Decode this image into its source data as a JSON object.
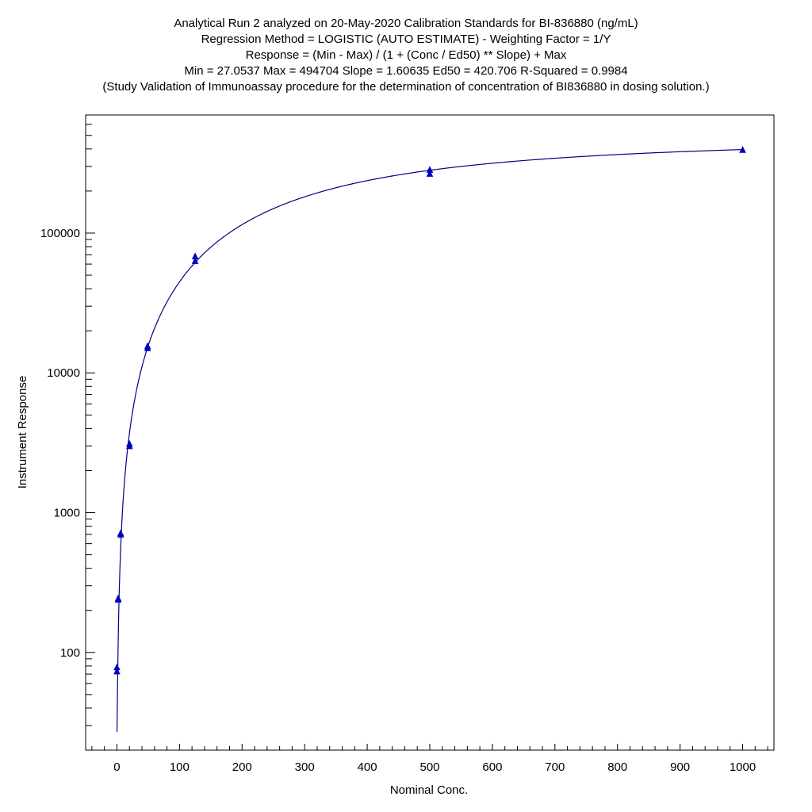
{
  "chart_data": {
    "type": "scatter",
    "title_lines": [
      "Analytical Run 2 analyzed on 20-May-2020 Calibration Standards for BI-836880 (ng/mL)",
      "Regression Method = LOGISTIC (AUTO ESTIMATE) - Weighting Factor = 1/Y",
      "Response = (Min - Max) / (1 + (Conc / Ed50) ** Slope) + Max",
      "Min = 27.0537 Max = 494704 Slope = 1.60635 Ed50 = 420.706 R-Squared = 0.9984",
      "(Study Validation of Immunoassay procedure for the determination of concentration of BI836880 in dosing solution.)"
    ],
    "xlabel": "Nominal Conc.",
    "ylabel": "Instrument Response",
    "xlim": [
      -50,
      1050
    ],
    "ylim": [
      20,
      700000
    ],
    "yscale": "log",
    "x_ticks": [
      0,
      100,
      200,
      300,
      400,
      500,
      600,
      700,
      800,
      900,
      1000
    ],
    "x_tick_labels": [
      "0",
      "100",
      "200",
      "300",
      "400",
      "500",
      "600",
      "700",
      "800",
      "900",
      "1000"
    ],
    "y_ticks": [
      100,
      1000,
      10000,
      100000
    ],
    "y_tick_labels": [
      "100",
      "1000",
      "10000",
      "100000"
    ],
    "grid": false,
    "legend": "none",
    "fit": {
      "model": "4PL logistic",
      "min": 27.0537,
      "max": 494704,
      "slope": 1.60635,
      "ed50": 420.706
    },
    "series": [
      {
        "marker": "triangle",
        "points": [
          {
            "x": 0,
            "y": 78
          },
          {
            "x": 0,
            "y": 73
          },
          {
            "x": 2,
            "y": 243
          },
          {
            "x": 2,
            "y": 238
          },
          {
            "x": 6,
            "y": 710
          },
          {
            "x": 6,
            "y": 695
          },
          {
            "x": 20,
            "y": 3100
          },
          {
            "x": 20,
            "y": 2980
          },
          {
            "x": 49,
            "y": 15500
          },
          {
            "x": 49,
            "y": 15000
          },
          {
            "x": 125,
            "y": 68000
          },
          {
            "x": 125,
            "y": 63000
          },
          {
            "x": 500,
            "y": 283000
          },
          {
            "x": 500,
            "y": 265000
          },
          {
            "x": 1000,
            "y": 393000
          }
        ]
      }
    ],
    "colors": {
      "series": "#0000c0",
      "curve": "#000080",
      "axis": "#000000"
    }
  }
}
